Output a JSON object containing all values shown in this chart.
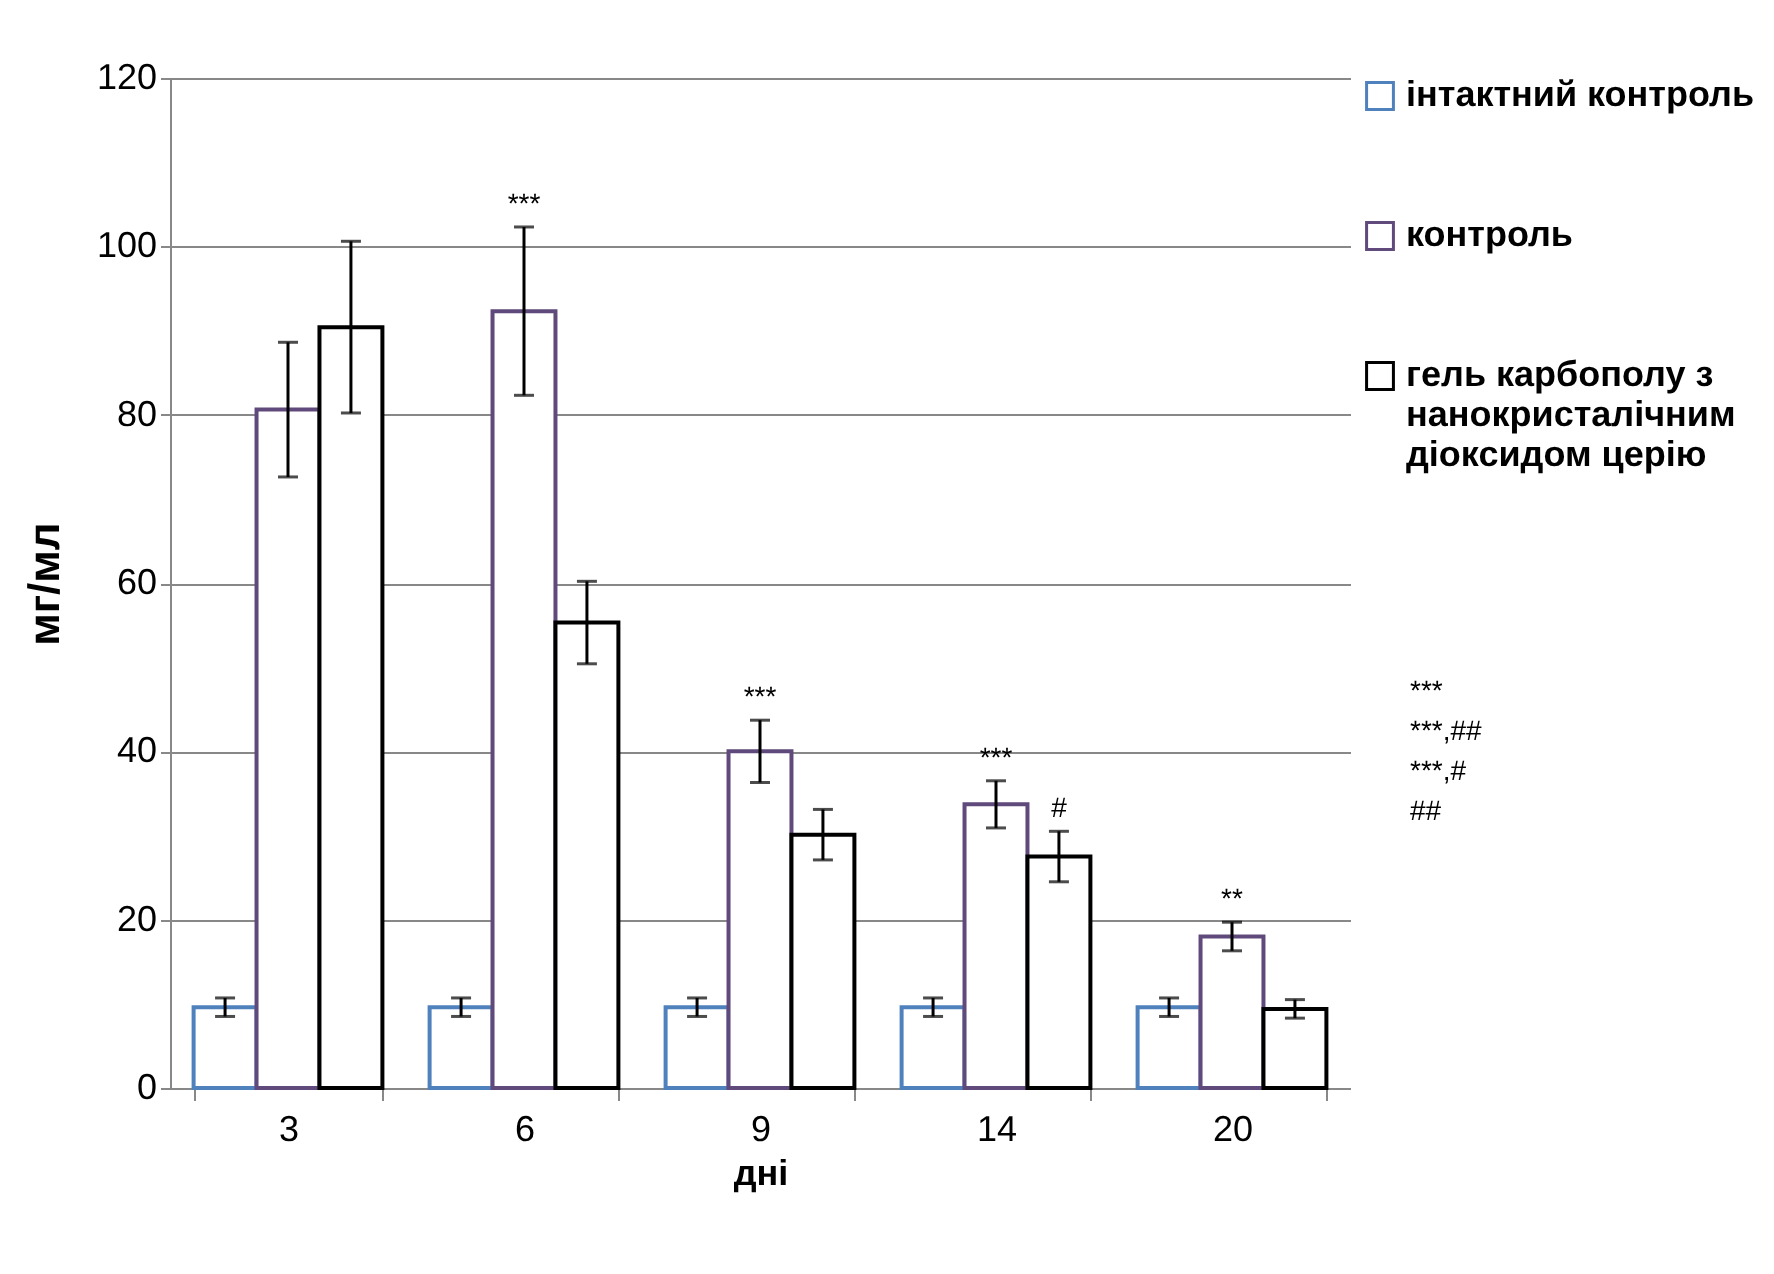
{
  "chart_data": {
    "type": "bar",
    "xlabel": "дні",
    "ylabel": "мг/мл",
    "categories": [
      "3",
      "6",
      "9",
      "14",
      "20"
    ],
    "series": [
      {
        "name": "інтактний контроль",
        "color": "#4f81bd",
        "values": [
          9.6,
          9.6,
          9.6,
          9.6,
          9.6
        ],
        "errors": [
          1.1,
          1.1,
          1.1,
          1.1,
          1.1
        ]
      },
      {
        "name": "контроль",
        "color": "#604a7b",
        "values": [
          80.6,
          92.3,
          40,
          33.7,
          18.0
        ],
        "errors": [
          8,
          10,
          3.7,
          2.8,
          1.7
        ]
      },
      {
        "name": "гель карбополу з нанокристалічним діоксидом церію",
        "color": "#000000",
        "values": [
          90.4,
          55.3,
          30.1,
          27.5,
          9.4
        ],
        "errors": [
          10.2,
          4.9,
          3,
          3,
          1.1
        ]
      }
    ],
    "ylim": [
      0,
      120
    ],
    "yticks": [
      0,
      20,
      40,
      60,
      80,
      100,
      120
    ],
    "grid": "y",
    "legend": "right",
    "annotations": [
      "***",
      {
        "text": "***",
        "x": "6",
        "y": 102.3
      },
      "***,##",
      {
        "text": "***",
        "x": "9",
        "y": 43.7
      },
      "***,#",
      {
        "text": "***",
        "x": "14",
        "y": 36.5
      },
      {
        "text": "#",
        "x": "14",
        "y": 30.5
      },
      {
        "text": "**",
        "x": "20",
        "y": 19.7
      },
      "##"
    ]
  }
}
